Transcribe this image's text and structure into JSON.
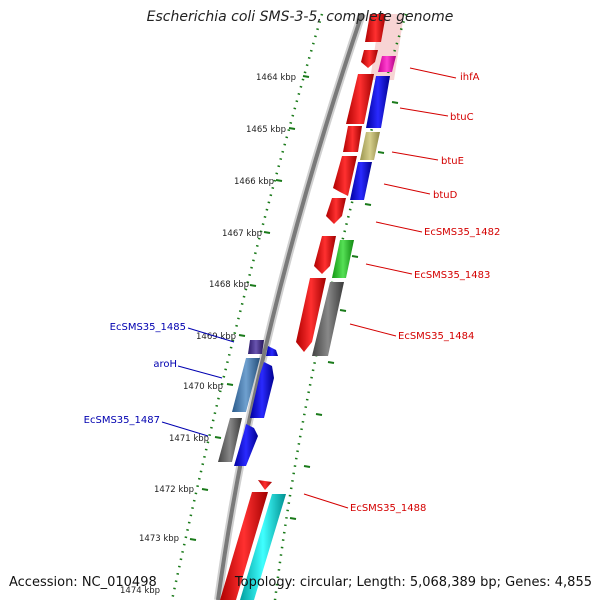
{
  "title": "Escherichia coli SMS-3-5, complete genome",
  "footer": {
    "accession": "Accession: NC_010498",
    "topology": "Topology: circular; Length: 5,068,389 bp; Genes: 4,855"
  },
  "scale_ticks": [
    "1464 kbp",
    "1465 kbp",
    "1466 kbp",
    "1467 kbp",
    "1468 kbp",
    "1469 kbp",
    "1470 kbp",
    "1471 kbp",
    "1472 kbp",
    "1473 kbp",
    "1474 kbp"
  ],
  "gene_labels_forward": [
    "ihfA",
    "btuC",
    "btuE",
    "btuD",
    "EcSMS35_1482",
    "EcSMS35_1483",
    "EcSMS35_1484",
    "EcSMS35_1488"
  ],
  "gene_labels_reverse": [
    "EcSMS35_1485",
    "aroH",
    "EcSMS35_1487"
  ],
  "colors": {
    "forward_label": "#d40000",
    "reverse_label": "#0000b0",
    "backbone": "#888888",
    "tick_dots": "#1a7a1a"
  }
}
